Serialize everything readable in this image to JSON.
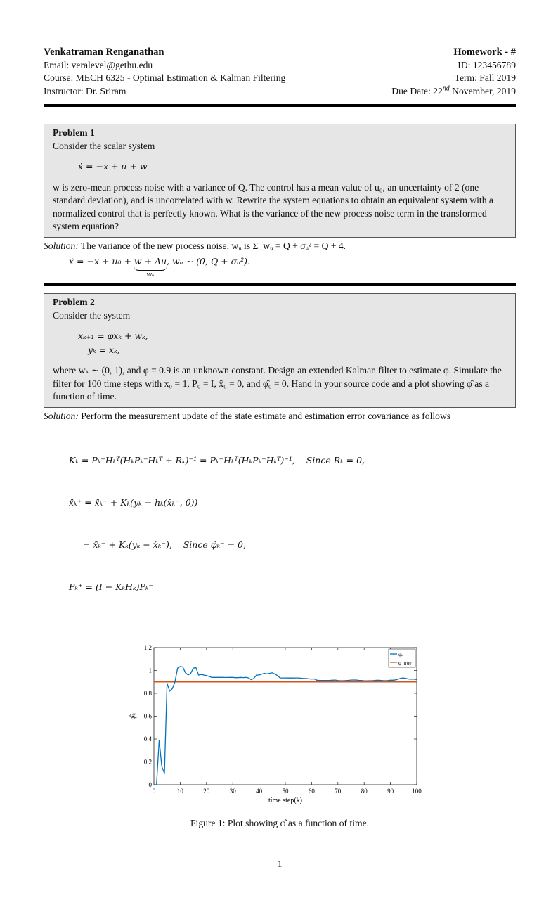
{
  "header": {
    "left": {
      "name": "Venkatraman Renganathan",
      "email": "Email: veralevel@gethu.edu",
      "course": "Course: MECH 6325 - Optimal Estimation & Kalman Filtering",
      "instructor": "Instructor: Dr. Sriram"
    },
    "right": {
      "homework": "Homework - #",
      "id": "ID: 123456789",
      "term": "Term: Fall 2019",
      "due_prefix": "Due Date: 22",
      "due_sup": "nd",
      "due_suffix": " November, 2019"
    }
  },
  "problem1": {
    "title": "Problem 1",
    "intro": "Consider the scalar system",
    "equation": "ẋ = −x + u + w",
    "text": "w is zero-mean process noise with a variance of Q. The control has a mean value of u₀, an uncertainty of 2 (one standard deviation), and is uncorrelated with w. Rewrite the system equations to obtain an equivalent system with a normalized control that is perfectly known. What is the variance of the new process noise term in the transformed system equation?",
    "solution_label": "Solution:",
    "solution_text": " The variance of the new process noise, wᵤ is Σ_wᵤ = Q + σᵤ² = Q + 4.",
    "solution_eq_a": "ẋ = −x + u₀ + ",
    "solution_eq_brace": "w + Δu",
    "solution_eq_under": "wᵤ",
    "solution_eq_b": ",    wᵤ ∼ (0, Q + σᵤ²)."
  },
  "problem2": {
    "title": "Problem 2",
    "intro": "Consider the system",
    "eq1": "xₖ₊₁ = φxₖ + wₖ,",
    "eq2": "yₖ = xₖ,",
    "text": "where wₖ ∼ (0, 1), and φ = 0.9 is an unknown constant. Design an extended Kalman filter to estimate φ. Simulate the filter for 100 time steps with x₀ = 1, P₀ = I, x̂₀ = 0, and φ̂₀ = 0. Hand in your source code and a plot showing φ̂ as a function of time.",
    "solution_label": "Solution:",
    "solution_text": " Perform the measurement update of the state estimate and estimation error covariance as follows",
    "equations": [
      "Kₖ = Pₖ⁻Hₖᵀ(HₖPₖ⁻Hₖᵀ + Rₖ)⁻¹ = Pₖ⁻Hₖᵀ(HₖPₖ⁻Hₖᵀ)⁻¹,    Since Rₖ = 0,",
      "x̂̂ₖ⁺ = x̂̂ₖ⁻ + Kₖ(yₖ − hₖ(x̂̂ₖ⁻, 0))",
      "     = x̂̂ₖ⁻ + Kₖ(yₖ − x̂ₖ⁻),    Since φ̂ₖ⁻ = 0,",
      "Pₖ⁺ = (I − KₖHₖ)Pₖ⁻"
    ]
  },
  "figure": {
    "caption": "Figure 1: Plot showing φ̂ as a function of time."
  },
  "page_number": "1",
  "chart_data": {
    "type": "line",
    "xlabel": "time step(k)",
    "ylabel": "φ̂ₖ",
    "xlim": [
      0,
      100
    ],
    "ylim": [
      0,
      1.2
    ],
    "xticks": [
      0,
      10,
      20,
      30,
      40,
      50,
      60,
      70,
      80,
      90,
      100
    ],
    "yticks": [
      0,
      0.2,
      0.4,
      0.6,
      0.8,
      1,
      1.2
    ],
    "ytick_labels": [
      "0",
      "0.2",
      "0.4",
      "0.6",
      "0.8",
      "1",
      "1.2"
    ],
    "grid": false,
    "legend_placement": "top-right",
    "series": [
      {
        "name": "φ̂ₖ",
        "color": "#0072BD",
        "x_start": 0,
        "x_step": 1,
        "values": [
          0,
          0,
          0.39,
          0.16,
          0.1,
          0.89,
          0.82,
          0.84,
          0.9,
          1.02,
          1.035,
          1.03,
          0.98,
          0.96,
          0.975,
          1.02,
          1.025,
          0.96,
          0.965,
          0.96,
          0.955,
          0.948,
          0.94,
          0.94,
          0.94,
          0.94,
          0.94,
          0.939,
          0.939,
          0.94,
          0.94,
          0.937,
          0.937,
          0.94,
          0.938,
          0.94,
          0.935,
          0.92,
          0.93,
          0.96,
          0.96,
          0.968,
          0.975,
          0.97,
          0.975,
          0.98,
          0.97,
          0.955,
          0.935,
          0.935,
          0.935,
          0.934,
          0.934,
          0.934,
          0.935,
          0.935,
          0.932,
          0.93,
          0.93,
          0.927,
          0.925,
          0.926,
          0.915,
          0.913,
          0.913,
          0.913,
          0.913,
          0.914,
          0.915,
          0.916,
          0.912,
          0.911,
          0.911,
          0.912,
          0.914,
          0.916,
          0.917,
          0.916,
          0.914,
          0.913,
          0.91,
          0.91,
          0.911,
          0.911,
          0.913,
          0.915,
          0.914,
          0.912,
          0.911,
          0.912,
          0.915,
          0.915,
          0.918,
          0.925,
          0.932,
          0.935,
          0.93,
          0.925,
          0.924,
          0.924,
          0.92
        ]
      },
      {
        "name": "φ_true",
        "color": "#D95319",
        "constant": 0.9
      }
    ]
  }
}
